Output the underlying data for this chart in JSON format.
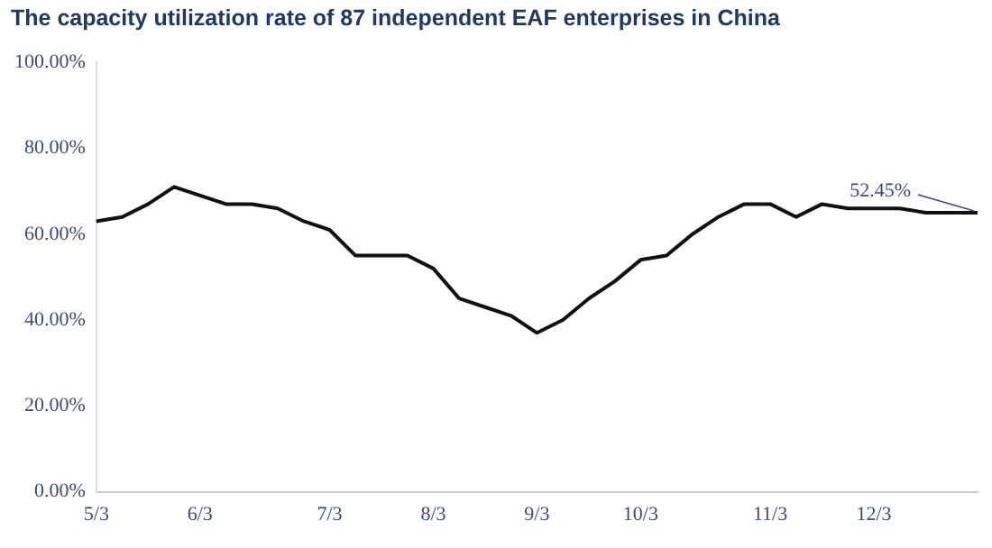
{
  "chart_data": {
    "type": "line",
    "title": "The capacity utilization rate of 87 independent EAF enterprises in China",
    "categories": [
      "5/3",
      null,
      null,
      null,
      "6/3",
      null,
      null,
      null,
      null,
      "7/3",
      null,
      null,
      null,
      "8/3",
      null,
      null,
      null,
      "9/3",
      null,
      null,
      null,
      "10/3",
      null,
      null,
      null,
      null,
      "11/3",
      null,
      null,
      null,
      "12/3",
      null,
      null,
      null,
      null
    ],
    "series": [
      {
        "color": "#111111",
        "values": [
          63,
          64,
          67,
          71,
          69,
          67,
          67,
          66,
          63,
          61,
          55,
          55,
          55,
          52,
          45,
          43,
          41,
          37,
          40,
          45,
          49,
          54,
          55,
          60,
          64,
          67,
          67,
          64,
          67,
          66,
          66,
          66,
          65,
          65,
          65
        ]
      }
    ],
    "ylim": [
      0,
      100
    ],
    "yticks": [
      {
        "value": 0,
        "label": "0.00%"
      },
      {
        "value": 20,
        "label": "20.00%"
      },
      {
        "value": 40,
        "label": "40.00%"
      },
      {
        "value": 60,
        "label": "60.00%"
      },
      {
        "value": 80,
        "label": "80.00%"
      },
      {
        "value": 100,
        "label": "100.00%"
      }
    ],
    "annotations": [
      {
        "text": "52.45%",
        "y": 65
      }
    ],
    "grid": false,
    "legend": false,
    "marker": "none",
    "line_style": "solid"
  }
}
